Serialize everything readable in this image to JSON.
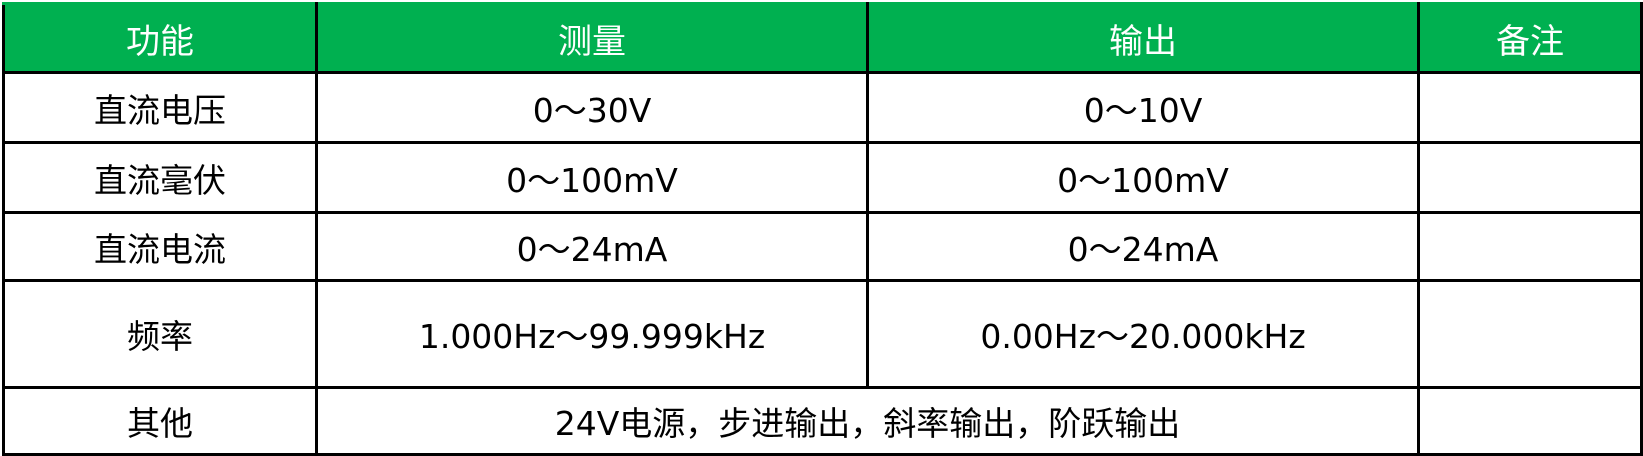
{
  "header": {
    "function": "功能",
    "measure": "测量",
    "output": "输出",
    "remark": "备注"
  },
  "rows": [
    {
      "function": "直流电压",
      "measure": "0～30V",
      "output": "0～10V",
      "remark": ""
    },
    {
      "function": "直流毫伏",
      "measure": "0～100mV",
      "output": "0～100mV",
      "remark": ""
    },
    {
      "function": "直流电流",
      "measure": "0～24mA",
      "output": "0～24mA",
      "remark": ""
    },
    {
      "function": "频率",
      "measure": "1.000Hz～99.999kHz",
      "output": "0.00Hz～20.000kHz",
      "remark": ""
    }
  ],
  "other": {
    "function": "其他",
    "content": "24V电源，步进输出，斜率输出，阶跃输出",
    "remark": ""
  },
  "colors": {
    "header_bg": "#00b050",
    "header_text": "#ffffff"
  }
}
